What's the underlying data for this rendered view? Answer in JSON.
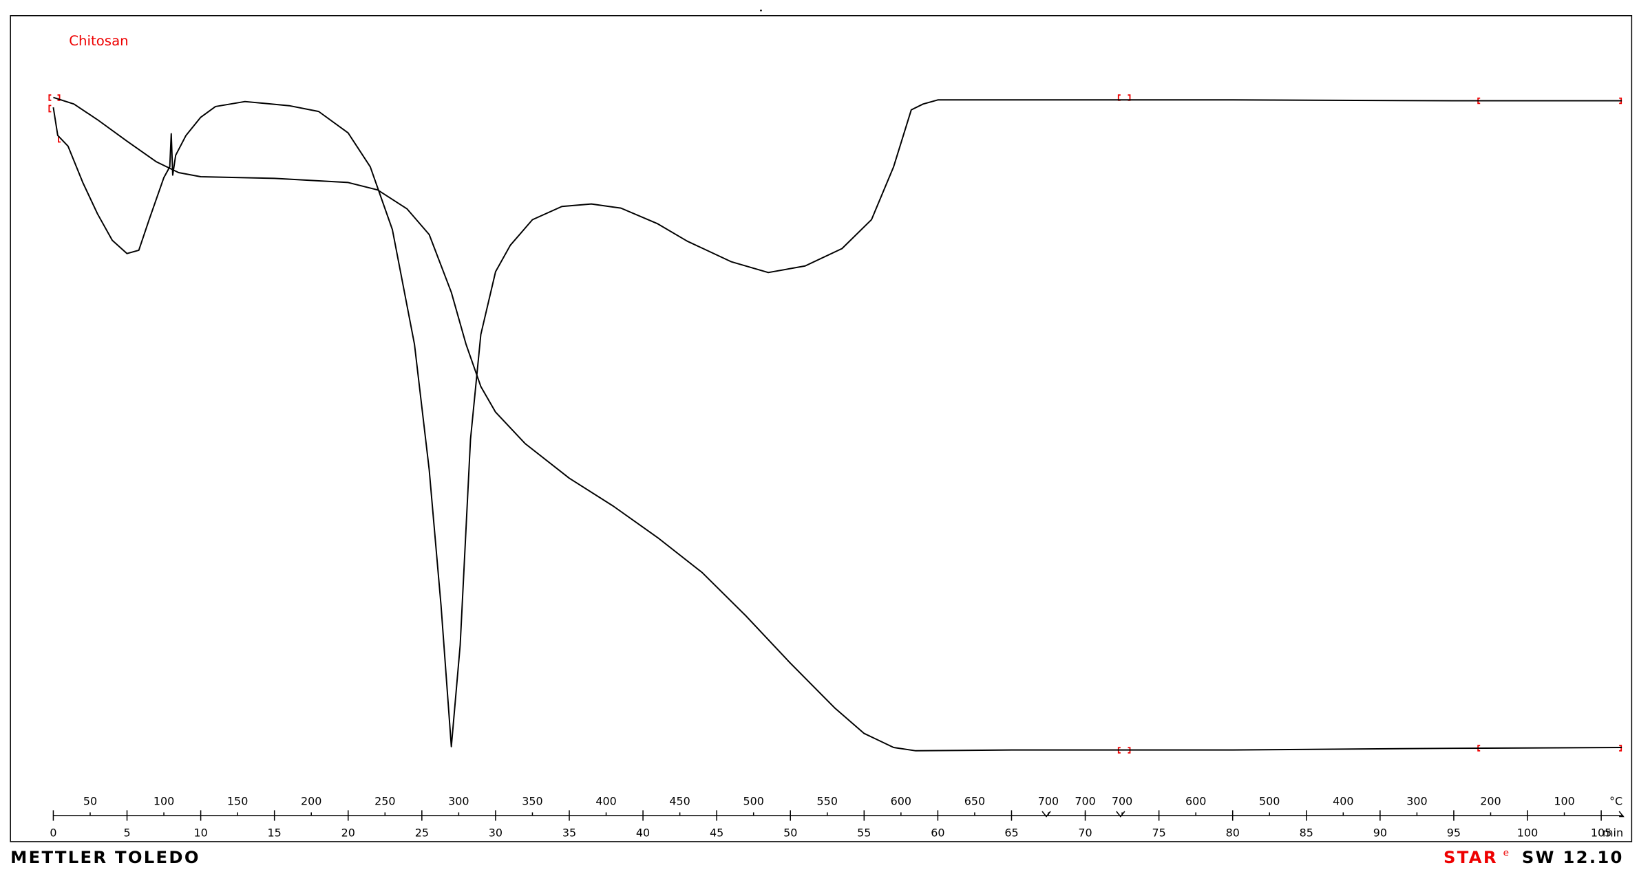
{
  "chart_data": {
    "type": "line",
    "annotation": "Chitosan",
    "x_label": "min",
    "temperature_unit": "°C",
    "xlim": [
      0,
      106.5
    ],
    "ylim": [
      0,
      100
    ],
    "xticks": [
      0,
      5,
      10,
      15,
      20,
      25,
      30,
      35,
      40,
      45,
      50,
      55,
      60,
      65,
      70,
      75,
      80,
      85,
      90,
      95,
      100,
      105
    ],
    "temperature_labels": [
      50,
      100,
      150,
      200,
      250,
      300,
      350,
      400,
      450,
      500,
      550,
      600,
      650,
      700,
      700,
      700,
      600,
      500,
      400,
      300,
      200,
      100
    ],
    "temperature_label_x": [
      2.5,
      7.5,
      12.5,
      17.5,
      22.5,
      27.5,
      32.5,
      37.5,
      42.5,
      47.5,
      52.5,
      57.5,
      62.5,
      67.5,
      70,
      72.5,
      77.5,
      82.5,
      87.5,
      92.5,
      97.5,
      102.5
    ],
    "series": [
      {
        "color": "#000000",
        "x": [
          0,
          1.4,
          3,
          5,
          7,
          8.5,
          10,
          15,
          20,
          22,
          24,
          25.5,
          27,
          28,
          29,
          30,
          32,
          35,
          38,
          41,
          44,
          47,
          50,
          53,
          55,
          57,
          58.5,
          65,
          80,
          95,
          106.4
        ],
        "values": [
          90.1,
          89.3,
          87.4,
          84.8,
          82.3,
          81.0,
          80.5,
          80.3,
          79.8,
          78.9,
          76.6,
          73.5,
          66.5,
          60.2,
          55.1,
          52.0,
          48.2,
          44.0,
          40.6,
          36.8,
          32.6,
          27.3,
          21.6,
          16.2,
          13.1,
          11.4,
          11.0,
          11.1,
          11.1,
          11.3,
          11.4
        ]
      },
      {
        "color": "#000000",
        "x": [
          0,
          0.3,
          1,
          2,
          3,
          4,
          5,
          5.8,
          6.5,
          7.5,
          7.9,
          8.0,
          8.1,
          8.3,
          9,
          10,
          11,
          13,
          16,
          18,
          20,
          21.5,
          23,
          24.5,
          25.5,
          26.3,
          27,
          27.6,
          28.3,
          29,
          30,
          31,
          32.5,
          34.5,
          36.5,
          38.5,
          41,
          43,
          46,
          48.5,
          51,
          53.5,
          55.5,
          57,
          58.2,
          59,
          60,
          70,
          80,
          95,
          106.4
        ],
        "values": [
          88.9,
          85.5,
          84.2,
          79.8,
          76.0,
          72.8,
          71.2,
          71.6,
          75.3,
          80.4,
          81.7,
          85.7,
          80.7,
          83.1,
          85.5,
          87.7,
          89.0,
          89.6,
          89.1,
          88.4,
          85.8,
          81.7,
          74.1,
          60.2,
          45.0,
          28.6,
          11.5,
          23.8,
          48.7,
          61.4,
          69.0,
          72.2,
          75.3,
          76.9,
          77.2,
          76.7,
          74.8,
          72.7,
          70.2,
          68.9,
          69.7,
          71.8,
          75.3,
          81.7,
          88.6,
          89.3,
          89.8,
          89.8,
          89.8,
          89.7,
          89.7
        ]
      }
    ]
  },
  "footer": {
    "brand": "METTLER TOLEDO",
    "software_name": "STAR",
    "software_mark": "e",
    "software_version": "SW 12.10"
  }
}
